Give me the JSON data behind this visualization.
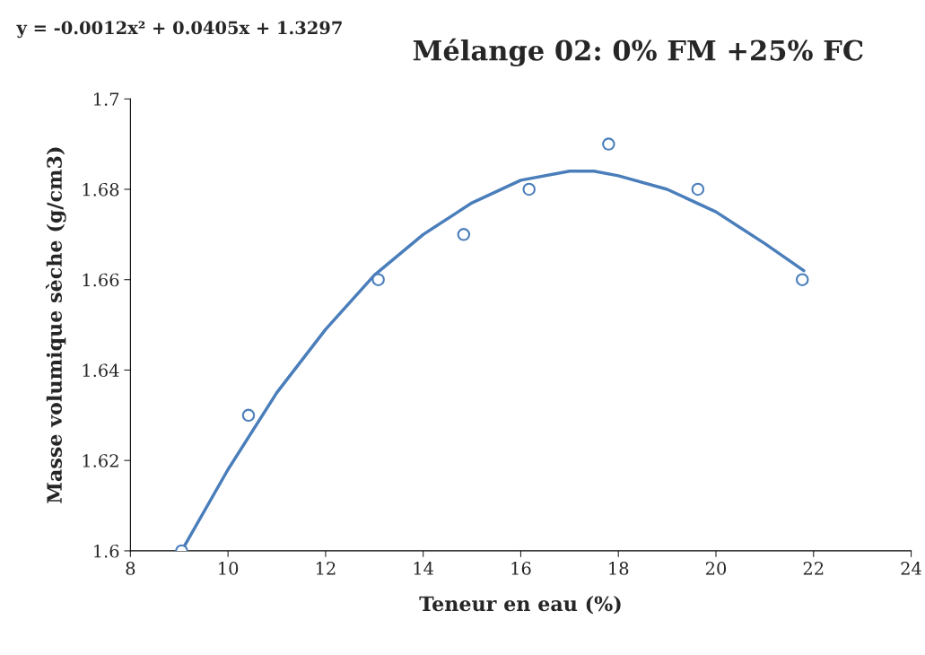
{
  "chart_data": {
    "type": "scatter",
    "title": "Mélange 02: 0% FM +25% FC",
    "xlabel": "Teneur en eau (%)",
    "ylabel": "Masse volumique sèche (g/cm3)",
    "annotations": [
      "y = -0.0012x² + 0.0405x + 1.3297"
    ],
    "series": [
      {
        "color": "#4a7ebb",
        "marker": "circle",
        "x": [
          9.05,
          10.42,
          13.08,
          14.83,
          16.17,
          17.8,
          19.63,
          21.77
        ],
        "values": [
          1.6,
          1.63,
          1.66,
          1.67,
          1.68,
          1.69,
          1.68,
          1.66
        ]
      },
      {
        "type": "line",
        "color": "#4a7ebb",
        "x": [
          9.05,
          10,
          11,
          12,
          13,
          14,
          15,
          16,
          17,
          17.5,
          18,
          19,
          20,
          21,
          21.8
        ],
        "values": [
          1.6,
          1.618,
          1.635,
          1.649,
          1.661,
          1.67,
          1.677,
          1.682,
          1.684,
          1.684,
          1.683,
          1.68,
          1.675,
          1.668,
          1.662
        ]
      }
    ],
    "xlim": [
      8,
      24
    ],
    "xticks": [
      8,
      10,
      12,
      14,
      16,
      18,
      20,
      22,
      24
    ],
    "ylim": [
      1.6,
      1.7
    ],
    "yticks": [
      {
        "value": 1.6,
        "label": "1.6"
      },
      {
        "value": 1.62,
        "label": "1.62"
      },
      {
        "value": 1.64,
        "label": "1.64"
      },
      {
        "value": 1.66,
        "label": "1.66"
      },
      {
        "value": 1.68,
        "label": "1.68"
      },
      {
        "value": 1.7,
        "label": "1.7"
      }
    ],
    "grid": false,
    "legend": false
  }
}
